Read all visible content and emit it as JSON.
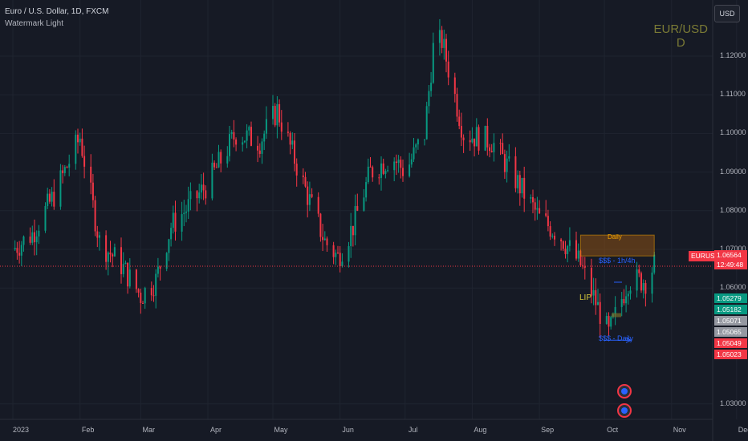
{
  "header": {
    "title": "Euro / U.S. Dollar, 1D, FXCM",
    "subtitle": "Watermark Light"
  },
  "watermark": {
    "symbol": "EUR/USD",
    "interval": "D"
  },
  "currency_button": "USD",
  "colors": {
    "background": "#161a25",
    "up": "#089981",
    "down": "#f23645",
    "grid": "#1f2430"
  },
  "chart_data": {
    "type": "candlestick",
    "symbol": "EURUSD",
    "ylim": [
      1.021,
      1.128
    ],
    "y_ticks": [
      "1.12000",
      "1.11000",
      "1.10000",
      "1.09000",
      "1.08000",
      "1.07000",
      "1.06000",
      "1.03000"
    ],
    "x_ticks": [
      "2023",
      "Feb",
      "Mar",
      "Apr",
      "May",
      "Jun",
      "Jul",
      "Aug",
      "Sep",
      "Oct",
      "Nov",
      "Dec"
    ],
    "grid": true,
    "close_path": [
      [
        "2023-01-01",
        1.07
      ],
      [
        "2023-01-10",
        1.074
      ],
      [
        "2023-01-20",
        1.084
      ],
      [
        "2023-02-01",
        1.099
      ],
      [
        "2023-02-10",
        1.072
      ],
      [
        "2023-02-20",
        1.066
      ],
      [
        "2023-03-01",
        1.058
      ],
      [
        "2023-03-08",
        1.062
      ],
      [
        "2023-03-15",
        1.076
      ],
      [
        "2023-03-23",
        1.081
      ],
      [
        "2023-04-01",
        1.087
      ],
      [
        "2023-04-14",
        1.1
      ],
      [
        "2023-04-25",
        1.098
      ],
      [
        "2023-05-03",
        1.106
      ],
      [
        "2023-05-15",
        1.087
      ],
      [
        "2023-05-25",
        1.072
      ],
      [
        "2023-05-31",
        1.068
      ],
      [
        "2023-06-07",
        1.076
      ],
      [
        "2023-06-15",
        1.09
      ],
      [
        "2023-06-25",
        1.094
      ],
      [
        "2023-07-01",
        1.09
      ],
      [
        "2023-07-10",
        1.1
      ],
      [
        "2023-07-14",
        1.122
      ],
      [
        "2023-07-18",
        1.124
      ],
      [
        "2023-07-28",
        1.1
      ],
      [
        "2023-08-10",
        1.098
      ],
      [
        "2023-08-20",
        1.089
      ],
      [
        "2023-09-01",
        1.078
      ],
      [
        "2023-09-10",
        1.074
      ],
      [
        "2023-09-20",
        1.066
      ],
      [
        "2023-10-03",
        1.048
      ],
      [
        "2023-10-12",
        1.062
      ],
      [
        "2023-10-20",
        1.062
      ],
      [
        "2023-10-24",
        1.066
      ]
    ],
    "last_price": {
      "label": "EURUSD",
      "value": "1.06564",
      "countdown": "12:49:48"
    },
    "price_tags": [
      {
        "value": "1.05279",
        "color": "#089981"
      },
      {
        "value": "1.05182",
        "color": "#089981"
      },
      {
        "value": "1.05071",
        "color": "#9598a1"
      },
      {
        "value": "1.05065",
        "color": "#9598a1"
      },
      {
        "value": "1.05049",
        "color": "#f23645"
      },
      {
        "value": "1.05023",
        "color": "#f23645"
      }
    ],
    "annotations": [
      {
        "text": "Daily",
        "color": "#f7a600",
        "zone": [
          1.0683,
          1.0737
        ],
        "from": "2023-09-20",
        "to": "2023-10-24"
      },
      {
        "text": "$$$ - 1h/4h",
        "color": "#2962ff"
      },
      {
        "text": "$$$ - Daily",
        "color": "#2962ff"
      },
      {
        "text": "LIP",
        "color": "#d4c73a"
      }
    ]
  }
}
